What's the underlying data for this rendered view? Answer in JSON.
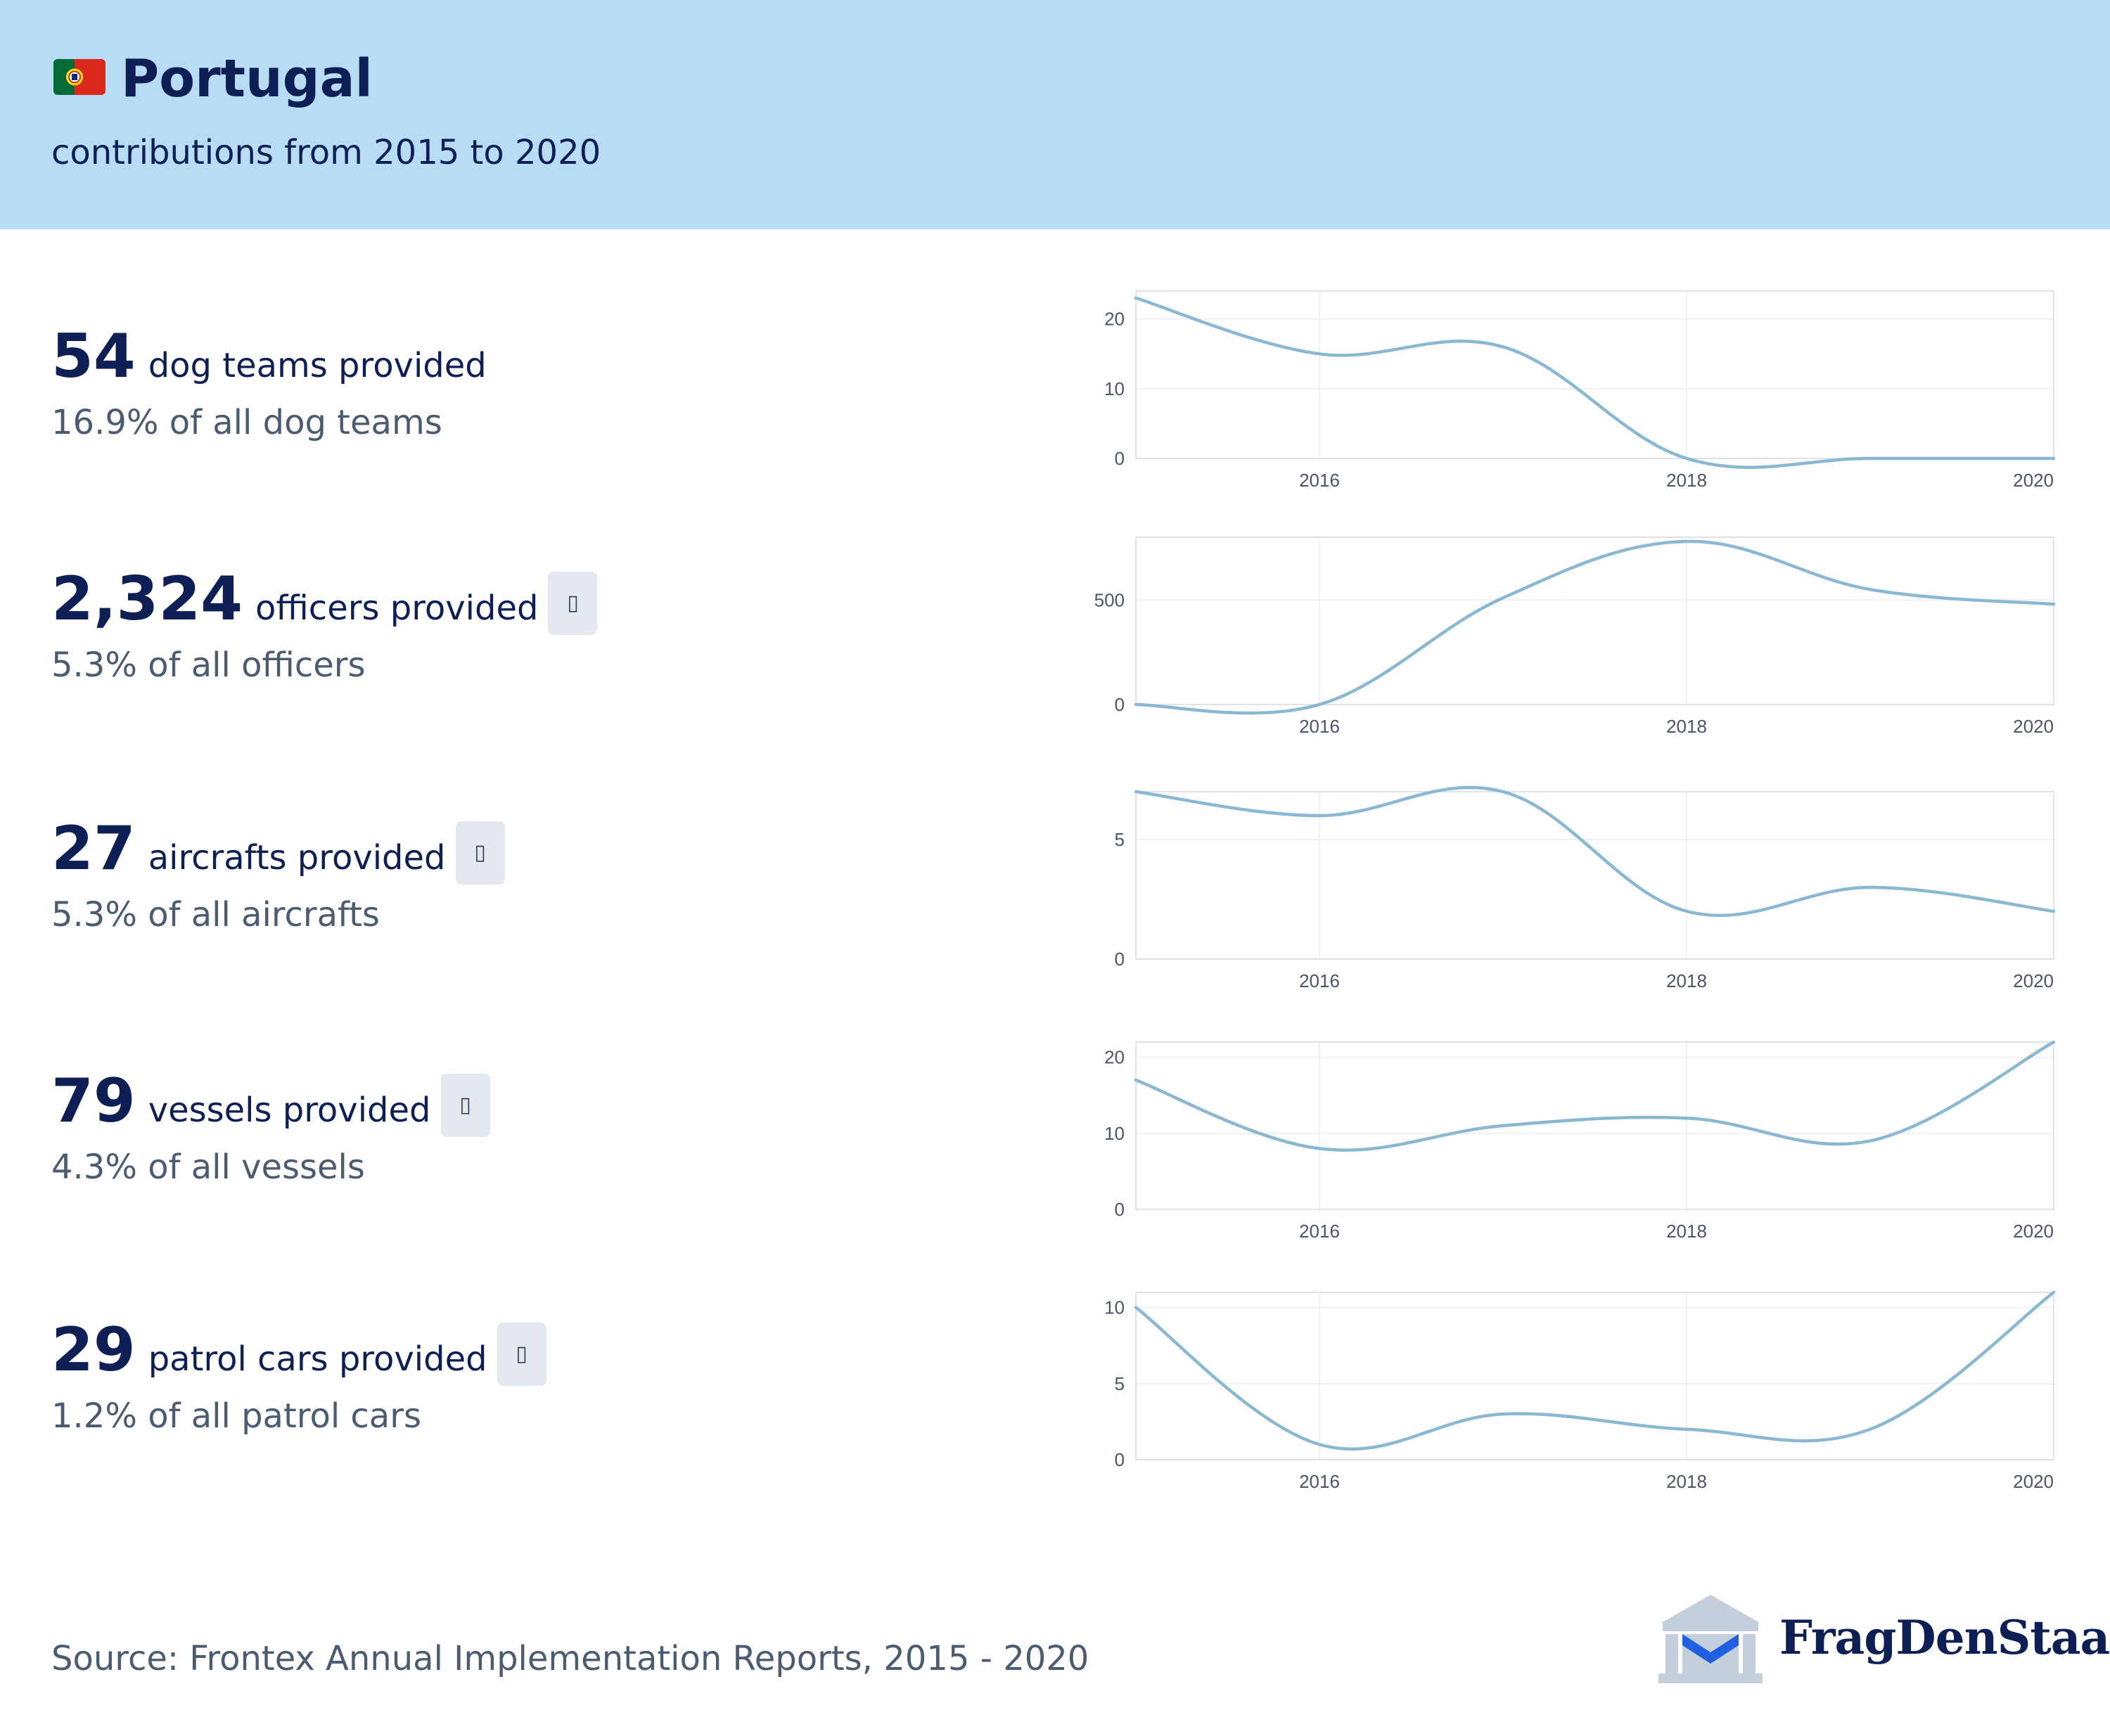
{
  "header": {
    "country": "Portugal",
    "subtitle": "contributions from 2015 to 2020",
    "flag_icon": "portugal-flag-icon"
  },
  "colors": {
    "header_bg": "#b8dcf4",
    "text_dark": "#0d1f55",
    "text_muted": "#4b5b70",
    "line": "#8ab8d2",
    "info_button_bg": "#e4e8ef"
  },
  "stats": [
    {
      "value": "54",
      "label": "dog teams provided",
      "share": "16.9% of all dog teams",
      "has_info": false
    },
    {
      "value": "2,324",
      "label": "officers provided",
      "share": "5.3% of all officers",
      "has_info": true
    },
    {
      "value": "27",
      "label": "aircrafts provided",
      "share": "5.3% of all aircrafts",
      "has_info": true
    },
    {
      "value": "79",
      "label": "vessels provided",
      "share": "4.3% of all vessels",
      "has_info": true
    },
    {
      "value": "29",
      "label": "patrol cars provided",
      "share": "1.2% of all patrol cars",
      "has_info": true
    }
  ],
  "chart_data": [
    {
      "type": "line",
      "title": "",
      "xlabel": "",
      "ylabel": "",
      "x": [
        2015,
        2016,
        2017,
        2018,
        2019,
        2020
      ],
      "values": [
        23,
        15,
        16,
        0,
        0,
        0
      ],
      "xlim": [
        2015,
        2020
      ],
      "ylim": [
        0,
        24
      ],
      "xticks": [
        2016,
        2018,
        2020
      ],
      "yticks": [
        0,
        10,
        20
      ],
      "grid": true
    },
    {
      "type": "line",
      "title": "",
      "xlabel": "",
      "ylabel": "",
      "x": [
        2015,
        2016,
        2017,
        2018,
        2019,
        2020
      ],
      "values": [
        0,
        0,
        510,
        780,
        550,
        480
      ],
      "xlim": [
        2015,
        2020
      ],
      "ylim": [
        0,
        800
      ],
      "xticks": [
        2016,
        2018,
        2020
      ],
      "yticks": [
        0,
        500
      ],
      "grid": true
    },
    {
      "type": "line",
      "title": "",
      "xlabel": "",
      "ylabel": "",
      "x": [
        2015,
        2016,
        2017,
        2018,
        2019,
        2020
      ],
      "values": [
        7,
        6,
        7,
        2,
        3,
        2
      ],
      "xlim": [
        2015,
        2020
      ],
      "ylim": [
        0,
        7
      ],
      "xticks": [
        2016,
        2018,
        2020
      ],
      "yticks": [
        0,
        5
      ],
      "grid": true
    },
    {
      "type": "line",
      "title": "",
      "xlabel": "",
      "ylabel": "",
      "x": [
        2015,
        2016,
        2017,
        2018,
        2019,
        2020
      ],
      "values": [
        17,
        8,
        11,
        12,
        9,
        22
      ],
      "xlim": [
        2015,
        2020
      ],
      "ylim": [
        0,
        22
      ],
      "xticks": [
        2016,
        2018,
        2020
      ],
      "yticks": [
        0,
        10,
        20
      ],
      "grid": true
    },
    {
      "type": "line",
      "title": "",
      "xlabel": "",
      "ylabel": "",
      "x": [
        2015,
        2016,
        2017,
        2018,
        2019,
        2020
      ],
      "values": [
        10,
        1,
        3,
        2,
        2,
        11
      ],
      "xlim": [
        2015,
        2020
      ],
      "ylim": [
        0,
        11
      ],
      "xticks": [
        2016,
        2018,
        2020
      ],
      "yticks": [
        0,
        5,
        10
      ],
      "grid": true
    }
  ],
  "footer": {
    "source": "Source: Frontex Annual Implementation Reports, 2015 - 2020",
    "logo_text": "FragDenStaat",
    "logo_icon": "fragdenstaat-building-icon"
  }
}
